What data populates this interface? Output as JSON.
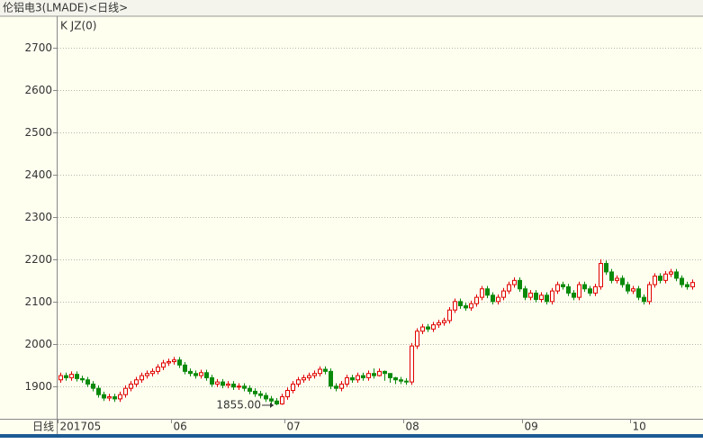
{
  "chart_data": {
    "type": "candlestick",
    "title": "伦铝电3(LMADE)<日线>",
    "indicator": "K JZ(0)",
    "x_label": "日线",
    "low_label": "1855.00",
    "up_color": "#e00000",
    "down_color": "#0a8a0a",
    "grid": true,
    "ylim": [
      1823,
      2770
    ],
    "yticks": [
      1900,
      2000,
      2100,
      2200,
      2300,
      2400,
      2500,
      2600,
      2700
    ],
    "categories": [
      "201705",
      null,
      null,
      null,
      null,
      null,
      null,
      null,
      null,
      null,
      null,
      null,
      null,
      null,
      null,
      null,
      null,
      null,
      null,
      null,
      null,
      "06",
      null,
      null,
      null,
      null,
      null,
      null,
      null,
      null,
      null,
      null,
      null,
      null,
      null,
      null,
      null,
      null,
      null,
      null,
      null,
      null,
      "07",
      null,
      null,
      null,
      null,
      null,
      null,
      null,
      null,
      null,
      null,
      null,
      null,
      null,
      null,
      null,
      null,
      null,
      null,
      null,
      null,
      null,
      "08",
      null,
      null,
      null,
      null,
      null,
      null,
      null,
      null,
      null,
      null,
      null,
      null,
      null,
      null,
      null,
      null,
      null,
      null,
      null,
      null,
      null,
      "09",
      null,
      null,
      null,
      null,
      null,
      null,
      null,
      null,
      null,
      null,
      null,
      null,
      null,
      null,
      null,
      null,
      null,
      null,
      null,
      "10",
      null,
      null,
      null,
      null,
      null,
      null,
      null,
      null,
      null,
      null,
      null
    ],
    "open": [
      1915,
      1925,
      1920,
      1928,
      1918,
      1915,
      1905,
      1895,
      1880,
      1872,
      1875,
      1870,
      1880,
      1895,
      1905,
      1915,
      1925,
      1930,
      1935,
      1945,
      1955,
      1958,
      1962,
      1950,
      1935,
      1930,
      1925,
      1932,
      1920,
      1905,
      1910,
      1902,
      1905,
      1898,
      1900,
      1895,
      1888,
      1882,
      1878,
      1870,
      1865,
      1858,
      1875,
      1890,
      1905,
      1915,
      1920,
      1925,
      1930,
      1940,
      1935,
      1900,
      1895,
      1905,
      1920,
      1915,
      1925,
      1920,
      1930,
      1925,
      1935,
      1930,
      1920,
      1915,
      1912,
      1910,
      1995,
      2030,
      2040,
      2035,
      2045,
      2050,
      2055,
      2080,
      2100,
      2090,
      2085,
      2095,
      2110,
      2130,
      2115,
      2100,
      2110,
      2125,
      2140,
      2150,
      2130,
      2110,
      2120,
      2105,
      2115,
      2100,
      2125,
      2140,
      2135,
      2120,
      2110,
      2140,
      2130,
      2120,
      2135,
      2190,
      2170,
      2150,
      2155,
      2140,
      2125,
      2130,
      2110,
      2100,
      2140,
      2160,
      2150,
      2165,
      2170,
      2155,
      2140,
      2135
    ],
    "high": [
      1932,
      1932,
      1935,
      1935,
      1925,
      1922,
      1912,
      1902,
      1887,
      1882,
      1882,
      1887,
      1902,
      1912,
      1922,
      1932,
      1937,
      1942,
      1952,
      1962,
      1965,
      1969,
      1969,
      1957,
      1942,
      1937,
      1939,
      1939,
      1927,
      1917,
      1917,
      1912,
      1912,
      1907,
      1907,
      1902,
      1895,
      1889,
      1885,
      1877,
      1872,
      1882,
      1897,
      1912,
      1922,
      1927,
      1932,
      1937,
      1947,
      1947,
      1942,
      1907,
      1912,
      1927,
      1927,
      1932,
      1932,
      1937,
      1942,
      1942,
      1937,
      1927,
      1922,
      1922,
      1919,
      2002,
      2037,
      2047,
      2047,
      2052,
      2057,
      2062,
      2087,
      2107,
      2107,
      2097,
      2102,
      2117,
      2137,
      2137,
      2122,
      2117,
      2132,
      2147,
      2157,
      2157,
      2137,
      2127,
      2127,
      2122,
      2122,
      2132,
      2147,
      2147,
      2142,
      2127,
      2147,
      2147,
      2137,
      2142,
      2200,
      2197,
      2177,
      2162,
      2162,
      2147,
      2137,
      2137,
      2117,
      2147,
      2167,
      2167,
      2172,
      2177,
      2177,
      2162,
      2147,
      2152
    ],
    "low": [
      1908,
      1913,
      1913,
      1911,
      1908,
      1898,
      1888,
      1873,
      1865,
      1865,
      1863,
      1863,
      1873,
      1888,
      1898,
      1908,
      1918,
      1923,
      1928,
      1938,
      1948,
      1951,
      1943,
      1928,
      1923,
      1918,
      1918,
      1913,
      1898,
      1898,
      1895,
      1895,
      1891,
      1891,
      1888,
      1881,
      1875,
      1871,
      1863,
      1858,
      1855,
      1856,
      1868,
      1883,
      1898,
      1908,
      1913,
      1918,
      1923,
      1928,
      1893,
      1888,
      1888,
      1898,
      1908,
      1908,
      1913,
      1913,
      1918,
      1923,
      1913,
      1908,
      1905,
      1905,
      1903,
      1903,
      1988,
      2023,
      2028,
      2028,
      2038,
      2043,
      2048,
      2073,
      2083,
      2078,
      2078,
      2088,
      2103,
      2108,
      2093,
      2093,
      2103,
      2118,
      2133,
      2123,
      2103,
      2103,
      2098,
      2098,
      2093,
      2093,
      2118,
      2128,
      2113,
      2103,
      2103,
      2123,
      2113,
      2113,
      2128,
      2163,
      2143,
      2143,
      2133,
      2118,
      2118,
      2103,
      2093,
      2093,
      2133,
      2143,
      2143,
      2158,
      2148,
      2133,
      2128,
      2128
    ],
    "close": [
      1925,
      1920,
      1928,
      1918,
      1915,
      1905,
      1895,
      1880,
      1872,
      1875,
      1870,
      1880,
      1895,
      1905,
      1915,
      1925,
      1930,
      1935,
      1945,
      1955,
      1958,
      1962,
      1950,
      1935,
      1930,
      1925,
      1932,
      1920,
      1905,
      1910,
      1902,
      1905,
      1898,
      1900,
      1895,
      1888,
      1882,
      1878,
      1870,
      1865,
      1858,
      1875,
      1890,
      1905,
      1915,
      1920,
      1925,
      1930,
      1940,
      1935,
      1900,
      1895,
      1905,
      1920,
      1915,
      1925,
      1920,
      1930,
      1925,
      1935,
      1930,
      1920,
      1915,
      1912,
      1910,
      1995,
      2030,
      2040,
      2035,
      2045,
      2050,
      2055,
      2080,
      2100,
      2090,
      2085,
      2095,
      2110,
      2130,
      2115,
      2100,
      2110,
      2125,
      2140,
      2150,
      2130,
      2110,
      2120,
      2105,
      2115,
      2100,
      2125,
      2140,
      2135,
      2120,
      2110,
      2140,
      2130,
      2120,
      2135,
      2190,
      2170,
      2150,
      2155,
      2140,
      2125,
      2130,
      2110,
      2100,
      2140,
      2160,
      2150,
      2165,
      2170,
      2155,
      2140,
      2135,
      2145
    ]
  }
}
